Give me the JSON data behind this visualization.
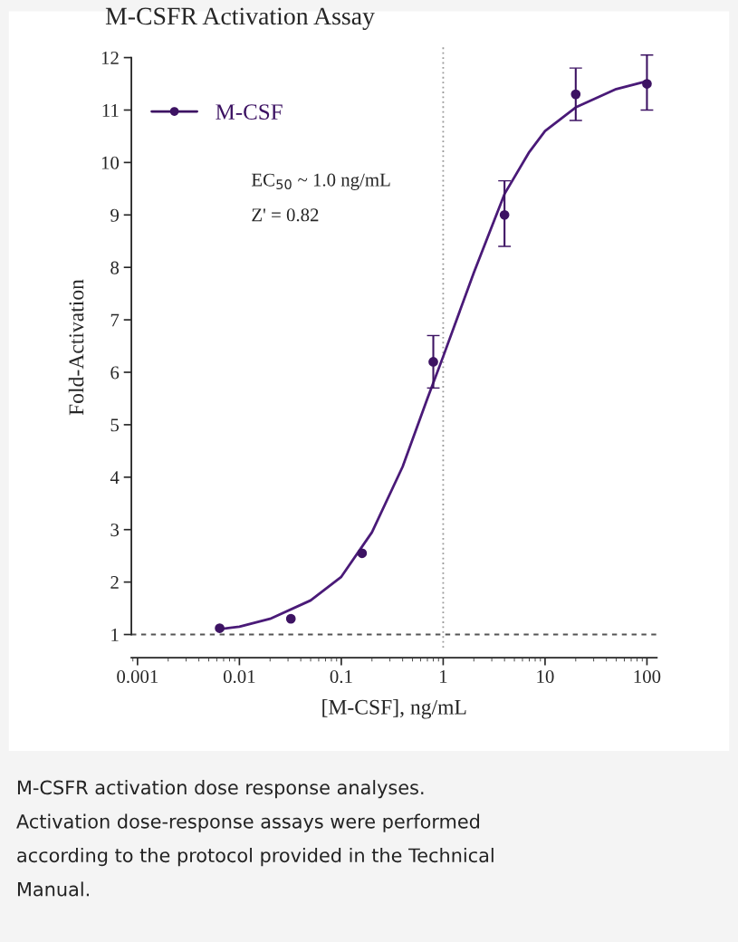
{
  "chart_data": {
    "type": "scatter",
    "title": "M-CSFR Activation Assay",
    "xlabel": "[M-CSF], ng/mL",
    "ylabel": "Fold-Activation",
    "log": "x",
    "xlim": [
      0.00087,
      125
    ],
    "xticks": [
      0.001,
      0.01,
      0.1,
      1,
      10,
      100
    ],
    "ylim": [
      0.75,
      12.2
    ],
    "yticks": [
      1,
      2,
      3,
      4,
      5,
      6,
      7,
      8,
      9,
      10,
      11,
      12
    ],
    "grid": false,
    "legend": "top left",
    "marker": "circle",
    "series": [
      {
        "name": "M-CSF",
        "color": "#3d1363",
        "x": [
          0.0064,
          0.032,
          0.16,
          0.8,
          4,
          20,
          100
        ],
        "values": [
          1.12,
          1.3,
          2.55,
          6.2,
          9.0,
          11.3,
          11.5
        ],
        "errors": [
          null,
          null,
          null,
          [
            5.7,
            6.7
          ],
          [
            8.4,
            9.65
          ],
          [
            10.8,
            11.8
          ],
          [
            11.0,
            12.05
          ]
        ]
      },
      {
        "type": "line",
        "color": "#4a1a78",
        "line_style": "solid",
        "marker": "none",
        "x": [
          0.0064,
          0.01,
          0.02,
          0.05,
          0.1,
          0.2,
          0.4,
          0.7,
          1,
          2,
          4,
          7,
          10,
          20,
          50,
          100
        ],
        "values": [
          1.1,
          1.15,
          1.3,
          1.65,
          2.1,
          2.95,
          4.2,
          5.5,
          6.3,
          7.9,
          9.4,
          10.2,
          10.6,
          11.05,
          11.4,
          11.55
        ]
      }
    ],
    "ref_lines": [
      {
        "axis": "y",
        "value": 1,
        "color": "#555555",
        "line_style": "dashed"
      },
      {
        "axis": "x",
        "value": 1,
        "color": "#999999",
        "line_style": "dotted"
      }
    ],
    "annotations": [
      "EC$_{50}$ ~ 1.0 ng/mL",
      "Z' = 0.82",
      "M-CSFR activation dose response analyses.",
      "Activation dose-response assays were performed",
      "according to the protocol provided in the Technical",
      "Manual."
    ]
  }
}
